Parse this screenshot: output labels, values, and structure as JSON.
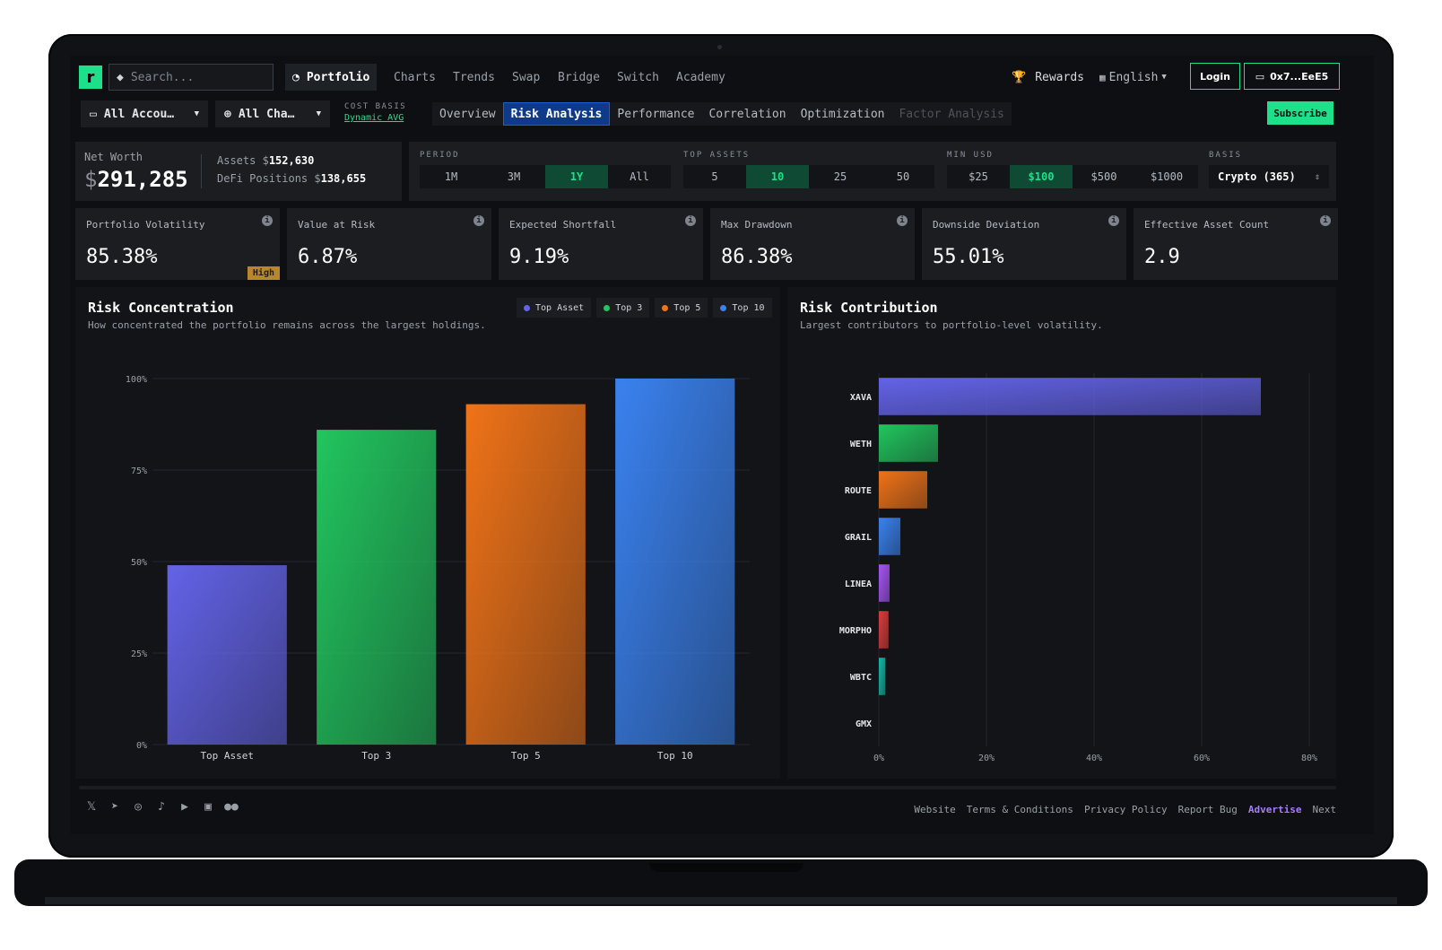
{
  "header": {
    "search_placeholder": "Search...",
    "nav": [
      {
        "label": "Portfolio",
        "active": true
      },
      {
        "label": "Charts"
      },
      {
        "label": "Trends"
      },
      {
        "label": "Swap"
      },
      {
        "label": "Bridge"
      },
      {
        "label": "Switch"
      },
      {
        "label": "Academy"
      }
    ],
    "rewards": "Rewards",
    "language": "English",
    "login": "Login",
    "wallet": "0x7...EeE5"
  },
  "subbar": {
    "accounts": "All Accou…",
    "chains": "All Cha…",
    "cost_basis_label": "COST BASIS",
    "cost_basis_value": "Dynamic AVG",
    "tabs": [
      "Overview",
      "Risk Analysis",
      "Performance",
      "Correlation",
      "Optimization",
      "Factor Analysis"
    ],
    "active_tab": "Risk Analysis",
    "subscribe": "Subscribe"
  },
  "networth": {
    "label": "Net Worth",
    "currency": "$",
    "value": "291,285",
    "assets_label": "Assets",
    "assets_value": "152,630",
    "defi_label": "DeFi Positions",
    "defi_value": "138,655"
  },
  "filters": {
    "period_label": "PERIOD",
    "period": [
      "1M",
      "3M",
      "1Y",
      "All"
    ],
    "period_active": "1Y",
    "top_label": "TOP ASSETS",
    "top": [
      "5",
      "10",
      "25",
      "50"
    ],
    "top_active": "10",
    "min_label": "MIN USD",
    "min": [
      "$25",
      "$100",
      "$500",
      "$1000"
    ],
    "min_active": "$100",
    "basis_label": "BASIS",
    "basis_value": "Crypto (365)"
  },
  "metrics": [
    {
      "label": "Portfolio Volatility",
      "value": "85.38%",
      "badge": "High"
    },
    {
      "label": "Value at Risk",
      "value": "6.87%"
    },
    {
      "label": "Expected Shortfall",
      "value": "9.19%"
    },
    {
      "label": "Max Drawdown",
      "value": "86.38%"
    },
    {
      "label": "Downside Deviation",
      "value": "55.01%"
    },
    {
      "label": "Effective Asset Count",
      "value": "2.9"
    }
  ],
  "colors": {
    "accent": "#1fe08a",
    "purple": "#6363e8",
    "green": "#22c55e",
    "orange": "#f07318",
    "blue": "#3a82f0",
    "pink": "#a855f7",
    "red": "#dc3c3c",
    "teal": "#14b8a6"
  },
  "concentration": {
    "title": "Risk Concentration",
    "subtitle": "How concentrated the portfolio remains across the largest holdings.",
    "legend": [
      "Top Asset",
      "Top 3",
      "Top 5",
      "Top 10"
    ]
  },
  "contribution": {
    "title": "Risk Contribution",
    "subtitle": "Largest contributors to portfolio-level volatility."
  },
  "chart_data": [
    {
      "type": "bar",
      "title": "Risk Concentration",
      "categories": [
        "Top Asset",
        "Top 3",
        "Top 5",
        "Top 10"
      ],
      "values": [
        49,
        86,
        93,
        100
      ],
      "colors": [
        "#6363e8",
        "#22c55e",
        "#f07318",
        "#3a82f0"
      ],
      "yticks": [
        "0%",
        "25%",
        "50%",
        "75%",
        "100%"
      ],
      "ylim": [
        0,
        100
      ],
      "grid": true,
      "legend": "top-right"
    },
    {
      "type": "bar",
      "orientation": "horizontal",
      "title": "Risk Contribution",
      "categories": [
        "XAVA",
        "WETH",
        "ROUTE",
        "GRAIL",
        "LINEA",
        "MORPHO",
        "WBTC",
        "GMX"
      ],
      "values": [
        71,
        11,
        9,
        4,
        2,
        1.8,
        1.2,
        0
      ],
      "colors": [
        "#6363e8",
        "#22c55e",
        "#f07318",
        "#3a82f0",
        "#a855f7",
        "#dc3c3c",
        "#14b8a6",
        "#6363e8"
      ],
      "xticks": [
        "0%",
        "20%",
        "40%",
        "60%",
        "80%"
      ],
      "xlim": [
        0,
        80
      ],
      "grid": true
    }
  ],
  "footer": {
    "social": [
      "x-icon",
      "telegram-icon",
      "instagram-icon",
      "tiktok-icon",
      "youtube-icon",
      "linkedin-icon",
      "medium-icon"
    ],
    "links": [
      "Website",
      "Terms & Conditions",
      "Privacy Policy",
      "Report Bug",
      "Advertise",
      "Next"
    ]
  }
}
